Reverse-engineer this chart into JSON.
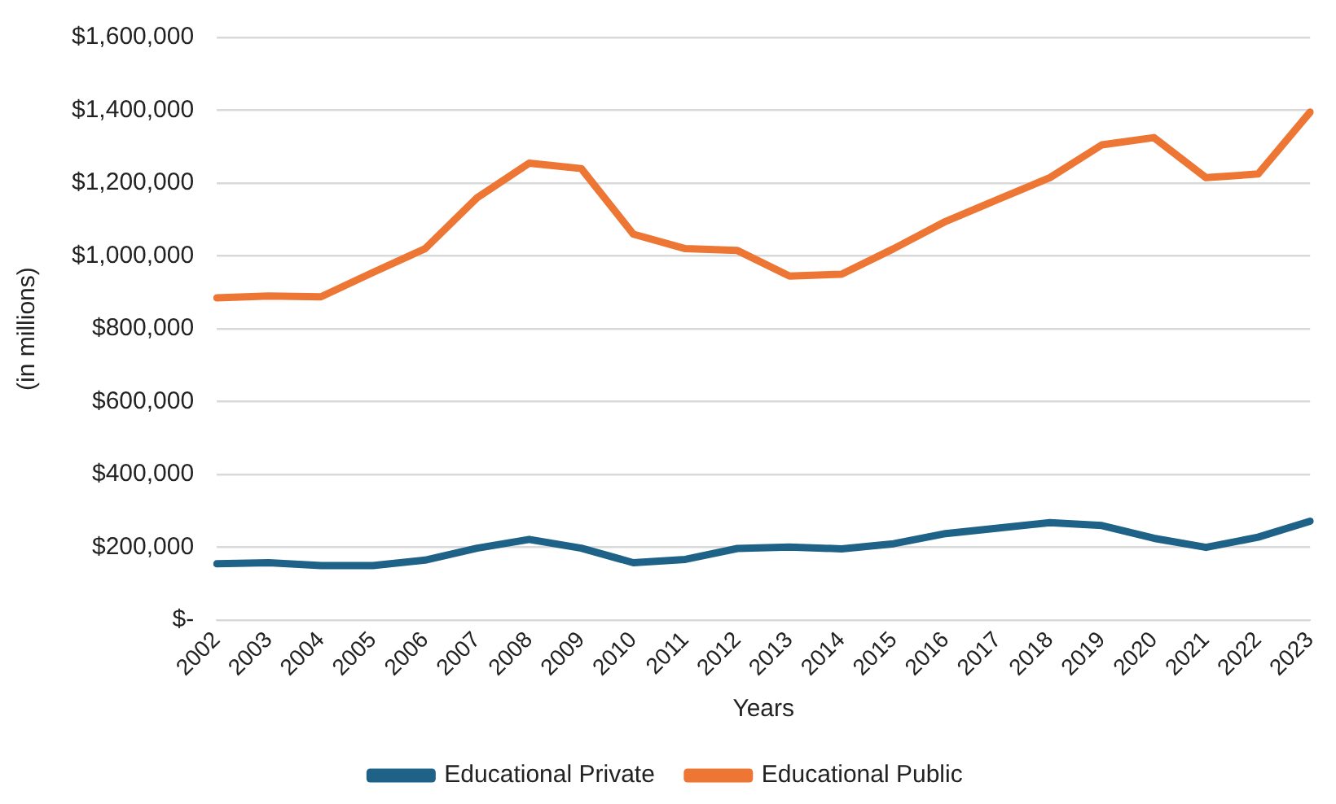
{
  "chart_data": {
    "type": "line",
    "xlabel": "Years",
    "ylabel": "(in millions)",
    "categories": [
      "2002",
      "2003",
      "2004",
      "2005",
      "2006",
      "2007",
      "2008",
      "2009",
      "2010",
      "2011",
      "2012",
      "2013",
      "2014",
      "2015",
      "2016",
      "2017",
      "2018",
      "2019",
      "2020",
      "2021",
      "2022",
      "2023"
    ],
    "series": [
      {
        "name": "Educational Private",
        "color": "#1f6287",
        "values": [
          155000,
          158000,
          150000,
          150000,
          165000,
          198000,
          222000,
          198000,
          158000,
          167000,
          197000,
          201000,
          196000,
          210000,
          238000,
          253000,
          268000,
          260000,
          225000,
          200000,
          228000,
          272000
        ]
      },
      {
        "name": "Educational Public",
        "color": "#ed7634",
        "values": [
          885000,
          890000,
          888000,
          955000,
          1020000,
          1160000,
          1255000,
          1240000,
          1060000,
          1020000,
          1015000,
          945000,
          950000,
          1020000,
          1095000,
          1155000,
          1215000,
          1305000,
          1325000,
          1215000,
          1225000,
          1395000
        ]
      }
    ],
    "ylim": [
      0,
      1600000
    ],
    "yticks": [
      {
        "value": 0,
        "label": "$-"
      },
      {
        "value": 200000,
        "label": "$200,000"
      },
      {
        "value": 400000,
        "label": "$400,000"
      },
      {
        "value": 600000,
        "label": "$600,000"
      },
      {
        "value": 800000,
        "label": "$800,000"
      },
      {
        "value": 1000000,
        "label": "$1,000,000"
      },
      {
        "value": 1200000,
        "label": "$1,200,000"
      },
      {
        "value": 1400000,
        "label": "$1,400,000"
      },
      {
        "value": 1600000,
        "label": "$1,600,000"
      }
    ],
    "grid": "y",
    "legend": "bottom",
    "marker": "none",
    "line_style": "solid"
  }
}
